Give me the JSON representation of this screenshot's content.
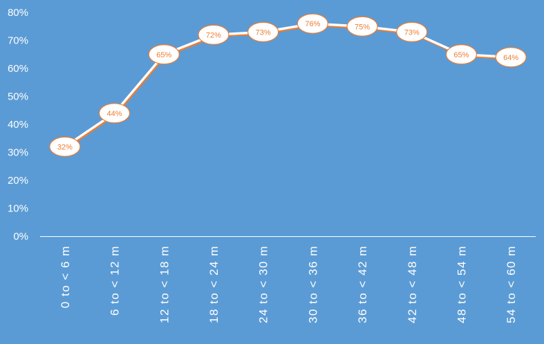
{
  "chart_data": {
    "type": "line",
    "title": "",
    "xlabel": "",
    "ylabel": "",
    "categories": [
      "0 to < 6 m",
      "6 to < 12 m",
      "12 to < 18 m",
      "18 to < 24 m",
      "24 to < 30 m",
      "30 to < 36 m",
      "36 to < 42 m",
      "42 to < 48 m",
      "48 to < 54 m",
      "54 to < 60 m"
    ],
    "values": [
      32,
      44,
      65,
      72,
      73,
      76,
      75,
      73,
      65,
      64
    ],
    "data_labels": [
      "32%",
      "44%",
      "65%",
      "72%",
      "73%",
      "76%",
      "75%",
      "73%",
      "65%",
      "64%"
    ],
    "y_ticks": [
      0,
      10,
      20,
      30,
      40,
      50,
      60,
      70,
      80
    ],
    "y_tick_labels": [
      "0%",
      "10%",
      "20%",
      "30%",
      "40%",
      "50%",
      "60%",
      "70%",
      "80%"
    ],
    "ylim": [
      0,
      80
    ],
    "grid": false,
    "legend": "none",
    "drop_lines": true,
    "colors": {
      "background": "#5b9bd5",
      "line": "#ffffff",
      "line_shadow": "#ed7d31",
      "label_fill": "#ffffff",
      "label_border": "#ed7d31",
      "label_text": "#ed7d31",
      "axis_text": "#ffffff",
      "drop_line": "#ffffff"
    }
  }
}
